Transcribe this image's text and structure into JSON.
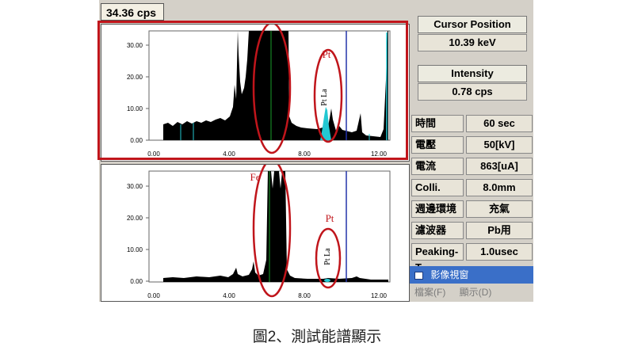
{
  "status": {
    "cps": "34.36 cps"
  },
  "panel_top": {
    "annotations": {
      "pt": "Pt",
      "pt_la": "Pt La"
    },
    "y_ticks": [
      "30.00",
      "20.00",
      "10.00",
      "0.00"
    ],
    "x_ticks": [
      "0.00",
      "4.00",
      "8.00",
      "12.00"
    ]
  },
  "panel_bottom": {
    "annotations": {
      "fe": "Fe",
      "pt": "Pt",
      "pt_la": "Pt La"
    },
    "y_ticks": [
      "30.00",
      "20.00",
      "10.00",
      "0.00"
    ],
    "x_ticks": [
      "0.00",
      "4.00",
      "8.00",
      "12.00"
    ]
  },
  "right_panel": {
    "cursor_position_label": "Cursor Position",
    "cursor_position_value": "10.39 keV",
    "intensity_label": "Intensity",
    "intensity_value": "0.78 cps",
    "params": [
      {
        "label": "時間",
        "value": "60 sec"
      },
      {
        "label": "電壓",
        "value": "50[kV]"
      },
      {
        "label": "電流",
        "value": "863[uA]"
      },
      {
        "label": "Colli.",
        "value": "8.0mm"
      },
      {
        "label": "週邊環境",
        "value": "充氣"
      },
      {
        "label": "濾波器",
        "value": "Pb用"
      },
      {
        "label": "Peaking-T",
        "value": "1.0usec"
      }
    ]
  },
  "image_window": {
    "title": "影像視窗",
    "menu": [
      "檔案(F)",
      "顯示(D)"
    ]
  },
  "caption": "圖2、測試能譜顯示",
  "colors": {
    "annotation_red": "#c0151b",
    "peak_cyan": "#23c8d2",
    "cursor_blue": "#2233aa",
    "frame_red": "#c0151b"
  }
}
